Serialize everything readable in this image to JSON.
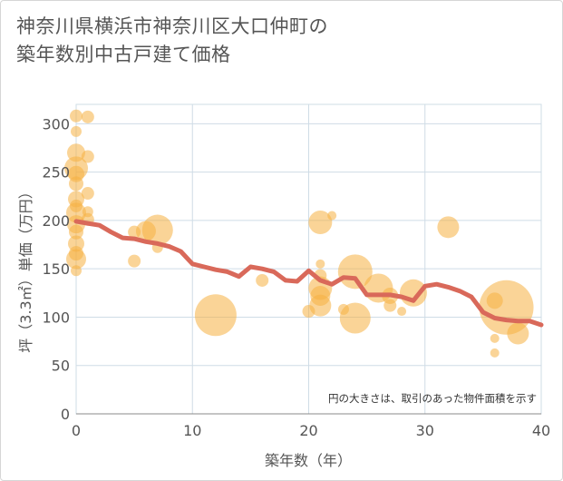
{
  "chart_data": {
    "type": "scatter",
    "title_line1": "神奈川県横浜市神奈川区大口仲町の",
    "title_line2": "築年数別中古戸建て価格",
    "xlabel": "築年数（年）",
    "ylabel": "坪（3.3㎡）単価（万円）",
    "xlim": [
      0,
      40
    ],
    "ylim": [
      0,
      320
    ],
    "xticks": [
      0,
      10,
      20,
      30,
      40
    ],
    "yticks": [
      0,
      50,
      100,
      150,
      200,
      250,
      300
    ],
    "grid": true,
    "annotation": "円の大きさは、取引のあった物件面積を示す",
    "colors": {
      "bubble": "#f5b041",
      "line": "#d9695a",
      "grid": "#cfdce6"
    },
    "bubbles": [
      {
        "x": 0,
        "y": 308,
        "s": 7
      },
      {
        "x": 1,
        "y": 307,
        "s": 7
      },
      {
        "x": 0,
        "y": 292,
        "s": 6
      },
      {
        "x": 0,
        "y": 270,
        "s": 10
      },
      {
        "x": 1,
        "y": 266,
        "s": 7
      },
      {
        "x": 0,
        "y": 254,
        "s": 13
      },
      {
        "x": 0,
        "y": 248,
        "s": 9
      },
      {
        "x": 0,
        "y": 238,
        "s": 8
      },
      {
        "x": 1,
        "y": 228,
        "s": 7
      },
      {
        "x": 0,
        "y": 222,
        "s": 9
      },
      {
        "x": 0,
        "y": 215,
        "s": 7
      },
      {
        "x": 0,
        "y": 208,
        "s": 11
      },
      {
        "x": 1,
        "y": 209,
        "s": 6
      },
      {
        "x": 1,
        "y": 201,
        "s": 7
      },
      {
        "x": 0,
        "y": 196,
        "s": 10
      },
      {
        "x": 0,
        "y": 188,
        "s": 8
      },
      {
        "x": 0,
        "y": 176,
        "s": 9
      },
      {
        "x": 0,
        "y": 166,
        "s": 8
      },
      {
        "x": 0,
        "y": 160,
        "s": 11
      },
      {
        "x": 0,
        "y": 148,
        "s": 6
      },
      {
        "x": 5,
        "y": 188,
        "s": 7
      },
      {
        "x": 6,
        "y": 189,
        "s": 11
      },
      {
        "x": 7,
        "y": 190,
        "s": 17
      },
      {
        "x": 7,
        "y": 172,
        "s": 6
      },
      {
        "x": 5,
        "y": 158,
        "s": 7
      },
      {
        "x": 12,
        "y": 102,
        "s": 23
      },
      {
        "x": 16,
        "y": 138,
        "s": 7
      },
      {
        "x": 21,
        "y": 198,
        "s": 13
      },
      {
        "x": 22,
        "y": 205,
        "s": 5
      },
      {
        "x": 21,
        "y": 155,
        "s": 5
      },
      {
        "x": 21,
        "y": 143,
        "s": 7
      },
      {
        "x": 21,
        "y": 130,
        "s": 13
      },
      {
        "x": 21,
        "y": 122,
        "s": 11
      },
      {
        "x": 21,
        "y": 112,
        "s": 12
      },
      {
        "x": 20,
        "y": 106,
        "s": 7
      },
      {
        "x": 23,
        "y": 108,
        "s": 6
      },
      {
        "x": 24,
        "y": 147,
        "s": 19
      },
      {
        "x": 24,
        "y": 99,
        "s": 17
      },
      {
        "x": 26,
        "y": 130,
        "s": 16
      },
      {
        "x": 27,
        "y": 122,
        "s": 9
      },
      {
        "x": 27,
        "y": 112,
        "s": 7
      },
      {
        "x": 28,
        "y": 106,
        "s": 5
      },
      {
        "x": 29,
        "y": 125,
        "s": 15
      },
      {
        "x": 32,
        "y": 193,
        "s": 12
      },
      {
        "x": 36,
        "y": 117,
        "s": 9
      },
      {
        "x": 37,
        "y": 110,
        "s": 30
      },
      {
        "x": 38,
        "y": 83,
        "s": 12
      },
      {
        "x": 36,
        "y": 78,
        "s": 5
      },
      {
        "x": 36,
        "y": 63,
        "s": 5
      }
    ],
    "trend": {
      "x": [
        0,
        1,
        2,
        3,
        4,
        5,
        6,
        7,
        8,
        9,
        10,
        11,
        12,
        13,
        14,
        15,
        16,
        17,
        18,
        19,
        20,
        21,
        22,
        23,
        24,
        25,
        26,
        27,
        28,
        29,
        30,
        31,
        32,
        33,
        34,
        35,
        36,
        37,
        38,
        39,
        40
      ],
      "values": [
        199,
        197,
        195,
        188,
        182,
        181,
        178,
        176,
        173,
        168,
        155,
        152,
        149,
        147,
        142,
        152,
        150,
        147,
        138,
        137,
        148,
        138,
        134,
        141,
        140,
        123,
        123,
        123,
        121,
        117,
        132,
        134,
        131,
        127,
        121,
        105,
        99,
        97,
        96,
        96,
        92
      ]
    }
  }
}
